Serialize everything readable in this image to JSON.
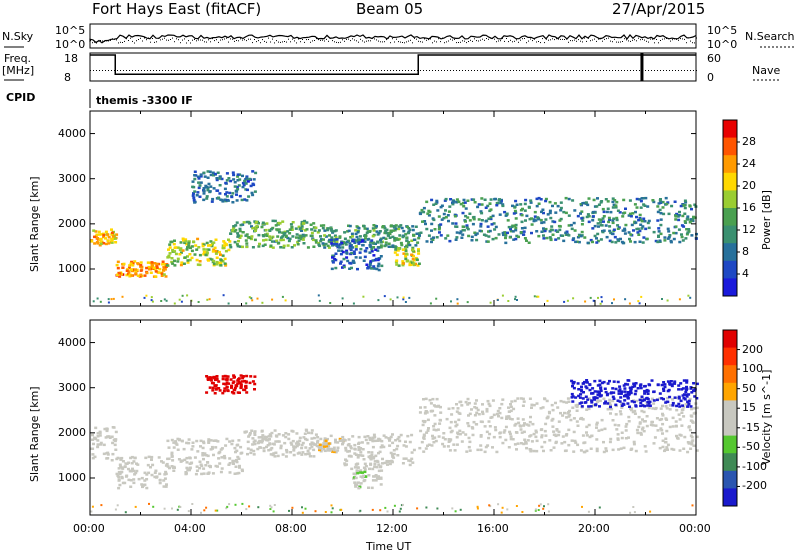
{
  "header": {
    "title": "Fort Hays East (fitACF)",
    "beam": "Beam 05",
    "date": "27/Apr/2015"
  },
  "top_panels": {
    "nsky_label": "N.Sky",
    "nsky_ticks": [
      "10^5",
      "10^0"
    ],
    "nsearch_label": "N.Search",
    "nsearch_ticks": [
      "10^5",
      "10^0"
    ],
    "freq_label": "Freq.",
    "freq_unit": "[MHz]",
    "freq_ticks": [
      "18",
      "8"
    ],
    "nave_label": "Nave",
    "nave_ticks": [
      "60",
      "0"
    ],
    "cpid_label": "CPID",
    "cpid_value": "themis -3300 IF"
  },
  "colors": {
    "power": [
      "#1a1adb",
      "#1e48c4",
      "#27709b",
      "#3a9070",
      "#4aa050",
      "#9acd32",
      "#ffd800",
      "#ff9a00",
      "#ff5500",
      "#e80000"
    ],
    "velocity": [
      "#1a1acd",
      "#2a55b0",
      "#3f8a55",
      "#55c830",
      "#c8c8c0",
      "#c8c8c0",
      "#ffa500",
      "#ff7000",
      "#ff3000",
      "#e00000"
    ],
    "velocity_gray": "#c8c8c0"
  },
  "chart_data": [
    {
      "type": "heatmap",
      "panel": "power",
      "ylabel": "Slant Range [km]",
      "colorbar_label": "Power [dB]",
      "colorbar_ticks": [
        "28",
        "24",
        "20",
        "16",
        "12",
        "8",
        "4"
      ],
      "colorbar_range": [
        0,
        32
      ],
      "yticks": [
        "4000",
        "3000",
        "2000",
        "1000"
      ],
      "ylim": [
        180,
        4500
      ],
      "xlim_hours": [
        0,
        24
      ],
      "bands": [
        {
          "t0": 0.0,
          "t1": 1.0,
          "r0": 1550,
          "r1": 1900,
          "p": 22
        },
        {
          "t0": 1.0,
          "t1": 3.0,
          "r0": 850,
          "r1": 1200,
          "p": 24
        },
        {
          "t0": 3.0,
          "t1": 5.5,
          "r0": 1100,
          "r1": 1700,
          "p": 18
        },
        {
          "t0": 5.5,
          "t1": 9.0,
          "r0": 1500,
          "r1": 2100,
          "p": 14
        },
        {
          "t0": 9.0,
          "t1": 13.0,
          "r0": 1500,
          "r1": 2000,
          "p": 12
        },
        {
          "t0": 12.0,
          "t1": 13.0,
          "r0": 1100,
          "r1": 1500,
          "p": 18
        },
        {
          "t0": 13.0,
          "t1": 24.0,
          "r0": 1600,
          "r1": 2600,
          "p": 10
        },
        {
          "t0": 4.0,
          "t1": 6.5,
          "r0": 2500,
          "r1": 3200,
          "p": 8
        },
        {
          "t0": 9.5,
          "t1": 11.5,
          "r0": 1000,
          "r1": 1700,
          "p": 6
        }
      ]
    },
    {
      "type": "heatmap",
      "panel": "velocity",
      "ylabel": "Slant Range [km]",
      "colorbar_label": "Velocity [m s^-1]",
      "colorbar_ticks": [
        "200",
        "100",
        "50",
        "15",
        "-15",
        "-50",
        "-100",
        "-200"
      ],
      "colorbar_range": [
        -250,
        250
      ],
      "yticks": [
        "4000",
        "3000",
        "2000",
        "1000"
      ],
      "ylim": [
        180,
        4500
      ],
      "xlim_hours": [
        0,
        24
      ],
      "xticks": [
        "00:00",
        "04:00",
        "08:00",
        "12:00",
        "16:00",
        "20:00",
        "00:00"
      ],
      "xlabel": "Time UT",
      "bands": [
        {
          "t0": 0.0,
          "t1": 1.0,
          "r0": 1400,
          "r1": 2200,
          "v": 0
        },
        {
          "t0": 1.0,
          "t1": 3.0,
          "r0": 800,
          "r1": 1500,
          "v": 0
        },
        {
          "t0": 3.0,
          "t1": 6.0,
          "r0": 1100,
          "r1": 1900,
          "v": 0
        },
        {
          "t0": 6.0,
          "t1": 9.0,
          "r0": 1500,
          "r1": 2100,
          "v": 0
        },
        {
          "t0": 9.0,
          "t1": 10.0,
          "r0": 1600,
          "r1": 2000,
          "v": -40
        },
        {
          "t0": 10.0,
          "t1": 12.8,
          "r0": 1300,
          "r1": 2000,
          "v": 30
        },
        {
          "t0": 10.3,
          "t1": 11.5,
          "r0": 800,
          "r1": 1300,
          "v": 40
        },
        {
          "t0": 4.5,
          "t1": 6.5,
          "r0": 2900,
          "r1": 3300,
          "v": -220
        },
        {
          "t0": 13.0,
          "t1": 24.0,
          "r0": 1600,
          "r1": 2800,
          "v": 0
        },
        {
          "t0": 19.0,
          "t1": 24.0,
          "r0": 2600,
          "r1": 3200,
          "v": 220
        }
      ]
    }
  ],
  "time_series": {
    "freq_segments_hours": [
      [
        0,
        1.0,
        18
      ],
      [
        1.0,
        13.0,
        10
      ],
      [
        13.0,
        24.0,
        18
      ]
    ]
  }
}
